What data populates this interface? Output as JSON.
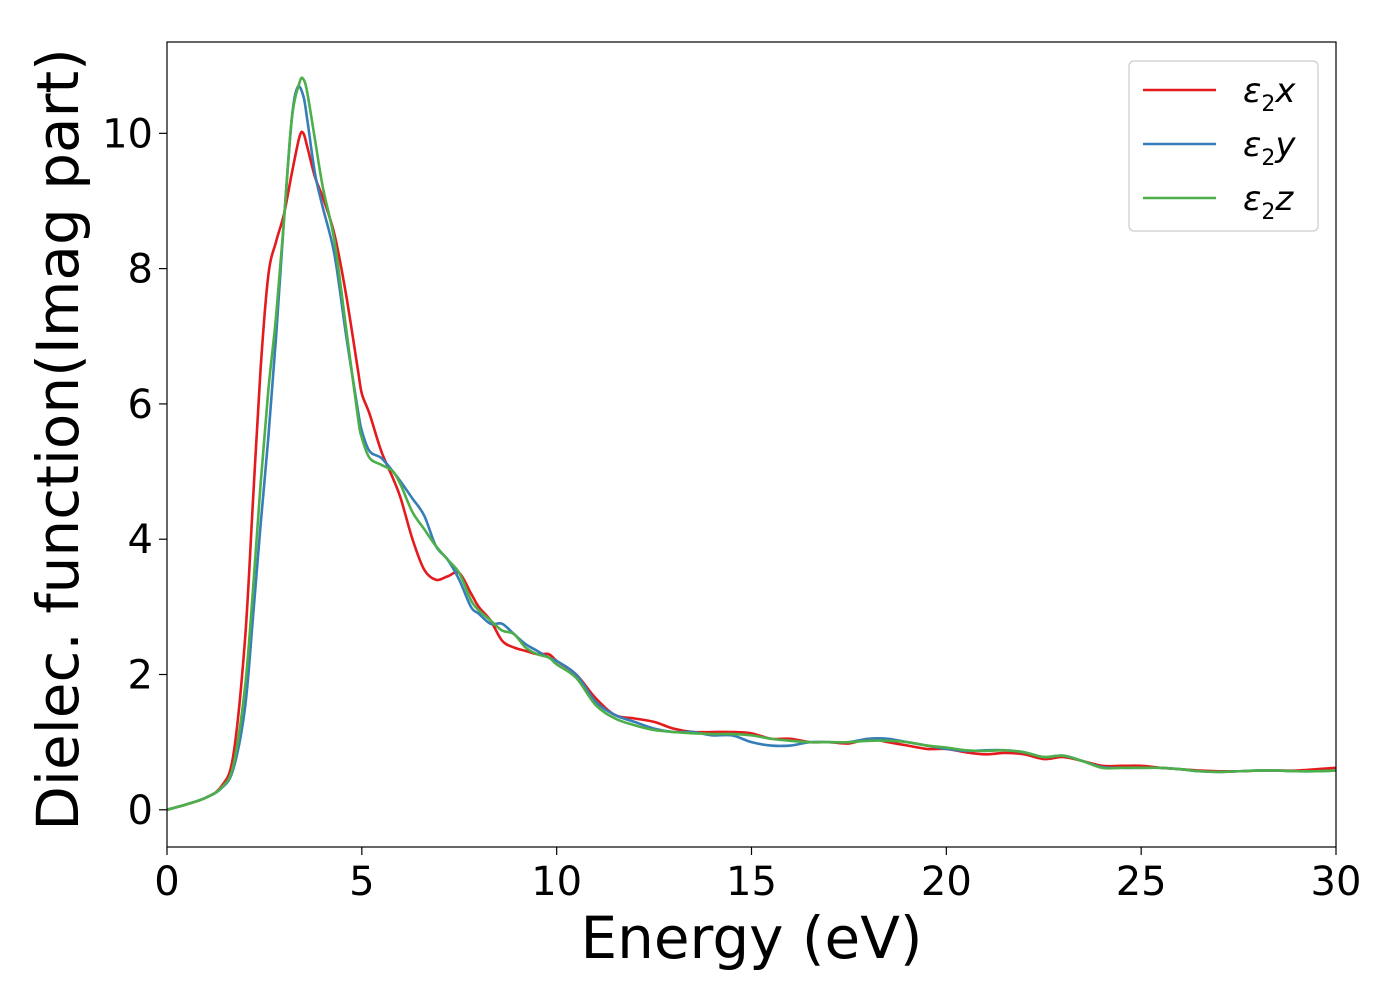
{
  "chart_data": {
    "type": "line",
    "title": "",
    "xlabel": "Energy (eV)",
    "ylabel": "Dielec. function(Imag part)",
    "xlim": [
      0,
      30
    ],
    "ylim": [
      -0.55,
      11.35
    ],
    "xticks": [
      0,
      5,
      10,
      15,
      20,
      25,
      30
    ],
    "yticks": [
      0,
      2,
      4,
      6,
      8,
      10
    ],
    "xtick_labels": [
      "0",
      "5",
      "10",
      "15",
      "20",
      "25",
      "30"
    ],
    "ytick_labels": [
      "0",
      "2",
      "4",
      "6",
      "8",
      "10"
    ],
    "grid": false,
    "legend": "top-right",
    "series": [
      {
        "name": "ε2x",
        "name_main": "ε",
        "name_sub": "2",
        "name_tail": "x",
        "color": "#e41a1c",
        "x": [
          0,
          0.5,
          1.0,
          1.4,
          1.7,
          2.0,
          2.2,
          2.4,
          2.6,
          2.8,
          3.0,
          3.2,
          3.4,
          3.5,
          3.6,
          3.8,
          4.0,
          4.3,
          4.6,
          4.9,
          5.0,
          5.2,
          5.5,
          5.8,
          6.0,
          6.3,
          6.6,
          6.9,
          7.2,
          7.5,
          7.8,
          8.0,
          8.3,
          8.6,
          8.9,
          9.2,
          9.5,
          9.8,
          10.0,
          10.5,
          11.0,
          11.5,
          12.0,
          12.5,
          13.0,
          13.5,
          14.0,
          14.5,
          15.0,
          15.5,
          16.0,
          16.5,
          17.0,
          17.5,
          18.0,
          18.5,
          19.0,
          19.5,
          20.0,
          20.5,
          21.0,
          21.5,
          22.0,
          22.5,
          23.0,
          23.5,
          24.0,
          24.5,
          25.0,
          25.5,
          26.0,
          26.5,
          27.0,
          27.5,
          28.0,
          28.5,
          29.0,
          29.5,
          30.0
        ],
        "values": [
          0,
          0.08,
          0.18,
          0.35,
          0.8,
          2.5,
          4.5,
          6.5,
          7.9,
          8.4,
          8.8,
          9.4,
          9.95,
          10.0,
          9.8,
          9.35,
          9.05,
          8.5,
          7.6,
          6.5,
          6.15,
          5.85,
          5.3,
          4.9,
          4.6,
          4.0,
          3.55,
          3.4,
          3.45,
          3.5,
          3.2,
          3.0,
          2.8,
          2.5,
          2.4,
          2.35,
          2.3,
          2.3,
          2.2,
          2.0,
          1.65,
          1.4,
          1.35,
          1.3,
          1.2,
          1.15,
          1.15,
          1.15,
          1.13,
          1.05,
          1.05,
          1.0,
          1.0,
          0.98,
          1.05,
          1.0,
          0.95,
          0.9,
          0.9,
          0.85,
          0.82,
          0.84,
          0.82,
          0.75,
          0.78,
          0.72,
          0.65,
          0.65,
          0.65,
          0.62,
          0.6,
          0.58,
          0.57,
          0.57,
          0.58,
          0.58,
          0.58,
          0.6,
          0.62
        ]
      },
      {
        "name": "ε2y",
        "name_main": "ε",
        "name_sub": "2",
        "name_tail": "y",
        "color": "#377eb8",
        "x": [
          0,
          0.5,
          1.0,
          1.4,
          1.7,
          2.0,
          2.2,
          2.4,
          2.6,
          2.8,
          3.0,
          3.2,
          3.35,
          3.5,
          3.6,
          3.8,
          4.0,
          4.3,
          4.6,
          4.9,
          5.0,
          5.2,
          5.5,
          5.8,
          6.0,
          6.3,
          6.6,
          6.9,
          7.2,
          7.5,
          7.8,
          8.0,
          8.3,
          8.6,
          8.9,
          9.2,
          9.5,
          9.8,
          10.0,
          10.5,
          11.0,
          11.5,
          12.0,
          12.5,
          13.0,
          13.5,
          14.0,
          14.5,
          15.0,
          15.5,
          16.0,
          16.5,
          17.0,
          17.5,
          18.0,
          18.5,
          19.0,
          19.5,
          20.0,
          20.5,
          21.0,
          21.5,
          22.0,
          22.5,
          23.0,
          23.5,
          24.0,
          24.5,
          25.0,
          25.5,
          26.0,
          26.5,
          27.0,
          27.5,
          28.0,
          28.5,
          29.0,
          29.5,
          30.0
        ],
        "values": [
          0,
          0.08,
          0.18,
          0.32,
          0.6,
          1.5,
          2.8,
          4.2,
          5.5,
          7.0,
          8.7,
          10.2,
          10.68,
          10.55,
          10.2,
          9.4,
          8.9,
          8.2,
          7.0,
          5.9,
          5.6,
          5.3,
          5.2,
          5.0,
          4.85,
          4.6,
          4.35,
          3.9,
          3.7,
          3.4,
          3.0,
          2.9,
          2.75,
          2.75,
          2.6,
          2.45,
          2.35,
          2.25,
          2.2,
          2.0,
          1.6,
          1.4,
          1.3,
          1.2,
          1.15,
          1.15,
          1.1,
          1.1,
          1.0,
          0.95,
          0.95,
          1.0,
          1.0,
          1.0,
          1.05,
          1.05,
          1.0,
          0.95,
          0.9,
          0.87,
          0.88,
          0.88,
          0.85,
          0.78,
          0.8,
          0.72,
          0.63,
          0.62,
          0.62,
          0.62,
          0.6,
          0.57,
          0.56,
          0.57,
          0.58,
          0.58,
          0.57,
          0.57,
          0.58
        ]
      },
      {
        "name": "ε2z",
        "name_main": "ε",
        "name_sub": "2",
        "name_tail": "z",
        "color": "#4daf4a",
        "x": [
          0,
          0.5,
          1.0,
          1.4,
          1.7,
          2.0,
          2.2,
          2.4,
          2.6,
          2.8,
          3.0,
          3.2,
          3.4,
          3.5,
          3.6,
          3.8,
          4.0,
          4.3,
          4.6,
          4.9,
          5.0,
          5.2,
          5.5,
          5.8,
          6.0,
          6.3,
          6.6,
          6.9,
          7.2,
          7.5,
          7.8,
          8.0,
          8.3,
          8.6,
          8.9,
          9.2,
          9.5,
          9.8,
          10.0,
          10.5,
          11.0,
          11.5,
          12.0,
          12.5,
          13.0,
          13.5,
          14.0,
          14.5,
          15.0,
          15.5,
          16.0,
          16.5,
          17.0,
          17.5,
          18.0,
          18.5,
          19.0,
          19.5,
          20.0,
          20.5,
          21.0,
          21.5,
          22.0,
          22.5,
          23.0,
          23.5,
          24.0,
          24.5,
          25.0,
          25.5,
          26.0,
          26.5,
          27.0,
          27.5,
          28.0,
          28.5,
          29.0,
          29.5,
          30.0
        ],
        "values": [
          0,
          0.08,
          0.18,
          0.33,
          0.65,
          1.8,
          3.2,
          4.8,
          6.2,
          7.3,
          8.7,
          10.2,
          10.75,
          10.8,
          10.6,
          9.9,
          9.2,
          8.4,
          7.1,
          5.8,
          5.5,
          5.2,
          5.1,
          5.0,
          4.8,
          4.4,
          4.15,
          3.9,
          3.7,
          3.5,
          3.1,
          2.95,
          2.8,
          2.65,
          2.6,
          2.4,
          2.3,
          2.25,
          2.15,
          1.95,
          1.55,
          1.35,
          1.25,
          1.18,
          1.15,
          1.13,
          1.12,
          1.12,
          1.1,
          1.05,
          1.02,
          1.0,
          1.0,
          1.0,
          1.02,
          1.02,
          1.0,
          0.95,
          0.92,
          0.88,
          0.87,
          0.88,
          0.85,
          0.78,
          0.8,
          0.72,
          0.62,
          0.62,
          0.62,
          0.62,
          0.6,
          0.57,
          0.56,
          0.57,
          0.58,
          0.58,
          0.57,
          0.57,
          0.58
        ]
      }
    ]
  }
}
